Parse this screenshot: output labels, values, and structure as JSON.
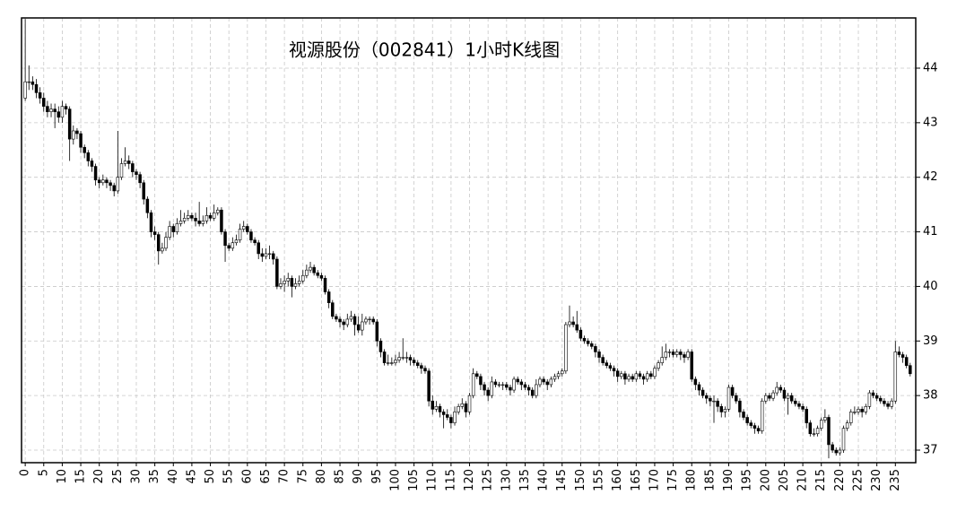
{
  "chart_data": {
    "type": "candlestick",
    "title": "视源股份（002841）1小时K线图",
    "up_color": "#ffffff",
    "down_color": "#000000",
    "edge_color": "#000000",
    "grid": true,
    "y_axis_side": "right",
    "xlim": [
      -1,
      240.5
    ],
    "ylim": [
      36.77,
      44.92
    ],
    "xticks": [
      0,
      5,
      10,
      15,
      20,
      25,
      30,
      35,
      40,
      45,
      50,
      55,
      60,
      65,
      70,
      75,
      80,
      85,
      90,
      95,
      100,
      105,
      110,
      115,
      120,
      125,
      130,
      135,
      140,
      145,
      150,
      155,
      160,
      165,
      170,
      175,
      180,
      185,
      190,
      195,
      200,
      205,
      210,
      215,
      220,
      225,
      230,
      235
    ],
    "yticks": [
      37,
      38,
      39,
      40,
      41,
      42,
      43,
      44
    ],
    "candles": [
      [
        43.45,
        44.9,
        43.4,
        43.75
      ],
      [
        43.75,
        44.05,
        43.6,
        43.75
      ],
      [
        43.75,
        43.85,
        43.6,
        43.7
      ],
      [
        43.7,
        43.8,
        43.45,
        43.55
      ],
      [
        43.55,
        43.65,
        43.35,
        43.45
      ],
      [
        43.45,
        43.55,
        43.2,
        43.3
      ],
      [
        43.3,
        43.4,
        43.1,
        43.2
      ],
      [
        43.2,
        43.35,
        43.1,
        43.25
      ],
      [
        43.25,
        43.35,
        42.9,
        43.2
      ],
      [
        43.2,
        43.3,
        43.0,
        43.1
      ],
      [
        43.1,
        43.4,
        43.0,
        43.3
      ],
      [
        43.3,
        43.35,
        43.15,
        43.25
      ],
      [
        43.25,
        43.3,
        42.3,
        42.7
      ],
      [
        42.7,
        42.95,
        42.6,
        42.85
      ],
      [
        42.85,
        42.9,
        42.7,
        42.8
      ],
      [
        42.8,
        42.85,
        42.45,
        42.55
      ],
      [
        42.55,
        42.6,
        42.35,
        42.45
      ],
      [
        42.45,
        42.5,
        42.2,
        42.3
      ],
      [
        42.3,
        42.35,
        42.1,
        42.2
      ],
      [
        42.2,
        42.25,
        41.85,
        41.95
      ],
      [
        41.95,
        42.0,
        41.8,
        41.9
      ],
      [
        41.9,
        42.05,
        41.85,
        41.95
      ],
      [
        41.95,
        42.0,
        41.8,
        41.9
      ],
      [
        41.9,
        41.95,
        41.75,
        41.85
      ],
      [
        41.85,
        41.9,
        41.65,
        41.75
      ],
      [
        41.75,
        42.85,
        41.7,
        42.0
      ],
      [
        42.0,
        42.35,
        41.95,
        42.25
      ],
      [
        42.25,
        42.55,
        42.2,
        42.3
      ],
      [
        42.3,
        42.4,
        42.15,
        42.25
      ],
      [
        42.25,
        42.3,
        42.0,
        42.1
      ],
      [
        42.1,
        42.15,
        41.95,
        42.05
      ],
      [
        42.05,
        42.1,
        41.8,
        41.9
      ],
      [
        41.9,
        41.95,
        41.5,
        41.6
      ],
      [
        41.6,
        41.65,
        41.25,
        41.35
      ],
      [
        41.35,
        41.4,
        40.9,
        41.0
      ],
      [
        41.0,
        41.1,
        40.85,
        40.95
      ],
      [
        40.95,
        41.0,
        40.4,
        40.65
      ],
      [
        40.65,
        40.8,
        40.6,
        40.7
      ],
      [
        40.7,
        41.0,
        40.65,
        40.9
      ],
      [
        40.9,
        41.2,
        40.85,
        41.1
      ],
      [
        41.1,
        41.15,
        40.9,
        41.0
      ],
      [
        41.0,
        41.25,
        40.95,
        41.15
      ],
      [
        41.15,
        41.4,
        41.1,
        41.2
      ],
      [
        41.2,
        41.35,
        41.15,
        41.25
      ],
      [
        41.25,
        41.4,
        41.2,
        41.3
      ],
      [
        41.3,
        41.35,
        41.2,
        41.25
      ],
      [
        41.25,
        41.35,
        41.1,
        41.2
      ],
      [
        41.2,
        41.55,
        41.1,
        41.15
      ],
      [
        41.15,
        41.3,
        41.1,
        41.2
      ],
      [
        41.2,
        41.45,
        41.15,
        41.3
      ],
      [
        41.3,
        41.35,
        41.2,
        41.25
      ],
      [
        41.25,
        41.5,
        41.2,
        41.35
      ],
      [
        41.35,
        41.45,
        41.3,
        41.4
      ],
      [
        41.4,
        41.45,
        40.95,
        41.0
      ],
      [
        41.0,
        41.05,
        40.45,
        40.75
      ],
      [
        40.75,
        40.8,
        40.65,
        40.7
      ],
      [
        40.7,
        40.9,
        40.65,
        40.8
      ],
      [
        40.8,
        40.95,
        40.75,
        40.85
      ],
      [
        40.85,
        41.15,
        40.8,
        41.05
      ],
      [
        41.05,
        41.2,
        41.0,
        41.1
      ],
      [
        41.1,
        41.15,
        40.95,
        41.0
      ],
      [
        41.0,
        41.05,
        40.8,
        40.85
      ],
      [
        40.85,
        40.9,
        40.75,
        40.8
      ],
      [
        40.8,
        40.85,
        40.5,
        40.6
      ],
      [
        40.6,
        40.7,
        40.45,
        40.55
      ],
      [
        40.55,
        40.7,
        40.5,
        40.6
      ],
      [
        40.6,
        40.75,
        40.5,
        40.6
      ],
      [
        40.6,
        40.65,
        40.4,
        40.5
      ],
      [
        40.5,
        40.55,
        39.95,
        40.0
      ],
      [
        40.0,
        40.15,
        39.95,
        40.05
      ],
      [
        40.05,
        40.2,
        39.9,
        40.1
      ],
      [
        40.1,
        40.25,
        40.0,
        40.15
      ],
      [
        40.15,
        40.2,
        39.8,
        40.0
      ],
      [
        40.0,
        40.15,
        39.95,
        40.05
      ],
      [
        40.05,
        40.2,
        40.0,
        40.1
      ],
      [
        40.1,
        40.3,
        40.05,
        40.2
      ],
      [
        40.2,
        40.4,
        40.15,
        40.3
      ],
      [
        40.3,
        40.45,
        40.25,
        40.35
      ],
      [
        40.35,
        40.4,
        40.2,
        40.25
      ],
      [
        40.25,
        40.3,
        40.15,
        40.2
      ],
      [
        40.2,
        40.25,
        40.1,
        40.15
      ],
      [
        40.15,
        40.2,
        39.85,
        39.9
      ],
      [
        39.9,
        39.95,
        39.6,
        39.7
      ],
      [
        39.7,
        39.75,
        39.4,
        39.45
      ],
      [
        39.45,
        39.5,
        39.35,
        39.4
      ],
      [
        39.4,
        39.45,
        39.25,
        39.35
      ],
      [
        39.35,
        39.4,
        39.2,
        39.3
      ],
      [
        39.3,
        39.5,
        39.25,
        39.4
      ],
      [
        39.4,
        39.55,
        39.35,
        39.45
      ],
      [
        39.45,
        39.5,
        39.1,
        39.3
      ],
      [
        39.3,
        39.45,
        39.15,
        39.2
      ],
      [
        39.2,
        39.5,
        39.1,
        39.35
      ],
      [
        39.35,
        39.45,
        39.3,
        39.4
      ],
      [
        39.4,
        39.45,
        39.3,
        39.4
      ],
      [
        39.4,
        39.45,
        39.3,
        39.35
      ],
      [
        39.35,
        39.4,
        38.9,
        39.0
      ],
      [
        39.0,
        39.05,
        38.7,
        38.8
      ],
      [
        38.8,
        38.85,
        38.55,
        38.6
      ],
      [
        38.6,
        38.75,
        38.55,
        38.6
      ],
      [
        38.6,
        38.7,
        38.55,
        38.6
      ],
      [
        38.6,
        38.75,
        38.55,
        38.65
      ],
      [
        38.65,
        38.8,
        38.6,
        38.7
      ],
      [
        38.7,
        39.05,
        38.65,
        38.7
      ],
      [
        38.7,
        38.8,
        38.6,
        38.7
      ],
      [
        38.7,
        38.75,
        38.55,
        38.65
      ],
      [
        38.65,
        38.7,
        38.55,
        38.6
      ],
      [
        38.6,
        38.65,
        38.5,
        38.55
      ],
      [
        38.55,
        38.6,
        38.4,
        38.5
      ],
      [
        38.5,
        38.55,
        38.4,
        38.45
      ],
      [
        38.45,
        38.5,
        37.8,
        37.9
      ],
      [
        37.9,
        38.0,
        37.65,
        37.75
      ],
      [
        37.75,
        37.9,
        37.7,
        37.8
      ],
      [
        37.8,
        37.85,
        37.6,
        37.7
      ],
      [
        37.7,
        37.75,
        37.4,
        37.65
      ],
      [
        37.65,
        37.75,
        37.55,
        37.6
      ],
      [
        37.6,
        37.65,
        37.4,
        37.5
      ],
      [
        37.5,
        37.8,
        37.45,
        37.7
      ],
      [
        37.7,
        37.85,
        37.65,
        37.8
      ],
      [
        37.8,
        37.95,
        37.75,
        37.85
      ],
      [
        37.85,
        37.9,
        37.6,
        37.7
      ],
      [
        37.7,
        38.05,
        37.65,
        38.0
      ],
      [
        38.0,
        38.5,
        37.95,
        38.4
      ],
      [
        38.4,
        38.45,
        38.3,
        38.35
      ],
      [
        38.35,
        38.4,
        38.1,
        38.2
      ],
      [
        38.2,
        38.25,
        38.0,
        38.1
      ],
      [
        38.1,
        38.15,
        37.9,
        38.0
      ],
      [
        38.0,
        38.35,
        37.95,
        38.25
      ],
      [
        38.25,
        38.3,
        38.15,
        38.2
      ],
      [
        38.2,
        38.25,
        38.15,
        38.2
      ],
      [
        38.2,
        38.25,
        38.1,
        38.2
      ],
      [
        38.2,
        38.25,
        38.1,
        38.15
      ],
      [
        38.15,
        38.2,
        38.0,
        38.1
      ],
      [
        38.1,
        38.35,
        38.05,
        38.3
      ],
      [
        38.3,
        38.35,
        38.2,
        38.25
      ],
      [
        38.25,
        38.3,
        38.1,
        38.2
      ],
      [
        38.2,
        38.25,
        38.1,
        38.15
      ],
      [
        38.15,
        38.2,
        38.0,
        38.1
      ],
      [
        38.1,
        38.15,
        37.95,
        38.0
      ],
      [
        38.0,
        38.3,
        37.95,
        38.2
      ],
      [
        38.2,
        38.35,
        38.15,
        38.3
      ],
      [
        38.3,
        38.35,
        38.2,
        38.25
      ],
      [
        38.25,
        38.3,
        38.1,
        38.2
      ],
      [
        38.2,
        38.35,
        38.15,
        38.3
      ],
      [
        38.3,
        38.4,
        38.25,
        38.35
      ],
      [
        38.35,
        38.45,
        38.3,
        38.4
      ],
      [
        38.4,
        38.5,
        38.35,
        38.45
      ],
      [
        38.45,
        39.35,
        38.4,
        39.3
      ],
      [
        39.3,
        39.65,
        39.25,
        39.35
      ],
      [
        39.35,
        39.45,
        39.25,
        39.3
      ],
      [
        39.3,
        39.55,
        39.15,
        39.2
      ],
      [
        39.2,
        39.25,
        39.0,
        39.05
      ],
      [
        39.05,
        39.1,
        38.95,
        39.0
      ],
      [
        39.0,
        39.05,
        38.9,
        38.95
      ],
      [
        38.95,
        39.0,
        38.85,
        38.9
      ],
      [
        38.9,
        38.95,
        38.7,
        38.8
      ],
      [
        38.8,
        38.85,
        38.6,
        38.7
      ],
      [
        38.7,
        38.75,
        38.55,
        38.6
      ],
      [
        38.6,
        38.65,
        38.5,
        38.55
      ],
      [
        38.55,
        38.6,
        38.45,
        38.5
      ],
      [
        38.5,
        38.55,
        38.35,
        38.45
      ],
      [
        38.45,
        38.5,
        38.25,
        38.35
      ],
      [
        38.35,
        38.45,
        38.3,
        38.4
      ],
      [
        38.4,
        38.45,
        38.2,
        38.3
      ],
      [
        38.3,
        38.4,
        38.25,
        38.35
      ],
      [
        38.35,
        38.4,
        38.25,
        38.3
      ],
      [
        38.3,
        38.45,
        38.25,
        38.4
      ],
      [
        38.4,
        38.45,
        38.3,
        38.35
      ],
      [
        38.35,
        38.4,
        38.2,
        38.3
      ],
      [
        38.3,
        38.45,
        38.25,
        38.4
      ],
      [
        38.4,
        38.45,
        38.3,
        38.35
      ],
      [
        38.35,
        38.55,
        38.3,
        38.5
      ],
      [
        38.5,
        38.65,
        38.45,
        38.6
      ],
      [
        38.6,
        38.9,
        38.55,
        38.7
      ],
      [
        38.7,
        38.95,
        38.65,
        38.8
      ],
      [
        38.8,
        38.85,
        38.7,
        38.8
      ],
      [
        38.8,
        38.85,
        38.7,
        38.75
      ],
      [
        38.75,
        38.85,
        38.7,
        38.8
      ],
      [
        38.8,
        38.85,
        38.65,
        38.75
      ],
      [
        38.75,
        38.8,
        38.6,
        38.7
      ],
      [
        38.7,
        38.85,
        38.65,
        38.8
      ],
      [
        38.8,
        38.85,
        38.25,
        38.3
      ],
      [
        38.3,
        38.35,
        38.1,
        38.2
      ],
      [
        38.2,
        38.25,
        38.0,
        38.1
      ],
      [
        38.1,
        38.15,
        37.95,
        38.0
      ],
      [
        38.0,
        38.05,
        37.85,
        37.95
      ],
      [
        37.95,
        38.0,
        37.8,
        37.9
      ],
      [
        37.9,
        38.0,
        37.5,
        37.9
      ],
      [
        37.9,
        37.95,
        37.7,
        37.8
      ],
      [
        37.8,
        37.85,
        37.6,
        37.7
      ],
      [
        37.7,
        37.8,
        37.6,
        37.75
      ],
      [
        37.75,
        38.2,
        37.7,
        38.15
      ],
      [
        38.15,
        38.2,
        37.95,
        38.0
      ],
      [
        38.0,
        38.05,
        37.85,
        37.9
      ],
      [
        37.9,
        37.95,
        37.6,
        37.7
      ],
      [
        37.7,
        37.75,
        37.55,
        37.6
      ],
      [
        37.6,
        37.65,
        37.45,
        37.5
      ],
      [
        37.5,
        37.55,
        37.4,
        37.45
      ],
      [
        37.45,
        37.5,
        37.3,
        37.4
      ],
      [
        37.4,
        37.45,
        37.3,
        37.35
      ],
      [
        37.35,
        37.95,
        37.3,
        37.9
      ],
      [
        37.9,
        38.05,
        37.85,
        38.0
      ],
      [
        38.0,
        38.05,
        37.9,
        37.95
      ],
      [
        37.95,
        38.1,
        37.9,
        38.05
      ],
      [
        38.05,
        38.25,
        38.0,
        38.15
      ],
      [
        38.15,
        38.2,
        38.05,
        38.1
      ],
      [
        38.1,
        38.15,
        37.9,
        37.95
      ],
      [
        37.95,
        38.05,
        37.65,
        38.0
      ],
      [
        38.0,
        38.05,
        37.85,
        37.9
      ],
      [
        37.9,
        37.95,
        37.8,
        37.85
      ],
      [
        37.85,
        37.9,
        37.75,
        37.8
      ],
      [
        37.8,
        37.85,
        37.7,
        37.75
      ],
      [
        37.75,
        37.8,
        37.4,
        37.5
      ],
      [
        37.5,
        37.55,
        37.25,
        37.3
      ],
      [
        37.3,
        37.4,
        37.25,
        37.3
      ],
      [
        37.3,
        37.45,
        37.25,
        37.4
      ],
      [
        37.4,
        37.6,
        37.35,
        37.55
      ],
      [
        37.55,
        37.75,
        37.5,
        37.6
      ],
      [
        37.6,
        37.65,
        36.85,
        37.1
      ],
      [
        37.1,
        37.15,
        36.95,
        37.0
      ],
      [
        37.0,
        37.05,
        36.9,
        36.95
      ],
      [
        36.95,
        37.05,
        36.9,
        37.0
      ],
      [
        37.0,
        37.45,
        36.95,
        37.4
      ],
      [
        37.4,
        37.55,
        37.35,
        37.5
      ],
      [
        37.5,
        37.75,
        37.45,
        37.7
      ],
      [
        37.7,
        37.8,
        37.65,
        37.7
      ],
      [
        37.7,
        37.8,
        37.65,
        37.75
      ],
      [
        37.75,
        37.8,
        37.6,
        37.7
      ],
      [
        37.7,
        37.85,
        37.65,
        37.8
      ],
      [
        37.8,
        38.1,
        37.75,
        38.05
      ],
      [
        38.05,
        38.1,
        37.95,
        38.0
      ],
      [
        38.0,
        38.05,
        37.9,
        37.95
      ],
      [
        37.95,
        38.0,
        37.85,
        37.9
      ],
      [
        37.9,
        37.95,
        37.8,
        37.85
      ],
      [
        37.85,
        37.9,
        37.75,
        37.8
      ],
      [
        37.8,
        37.95,
        37.75,
        37.9
      ],
      [
        37.9,
        39.0,
        37.85,
        38.8
      ],
      [
        38.8,
        38.9,
        38.7,
        38.75
      ],
      [
        38.75,
        38.8,
        38.6,
        38.7
      ],
      [
        38.7,
        38.75,
        38.5,
        38.55
      ],
      [
        38.55,
        38.6,
        38.35,
        38.4
      ]
    ]
  }
}
